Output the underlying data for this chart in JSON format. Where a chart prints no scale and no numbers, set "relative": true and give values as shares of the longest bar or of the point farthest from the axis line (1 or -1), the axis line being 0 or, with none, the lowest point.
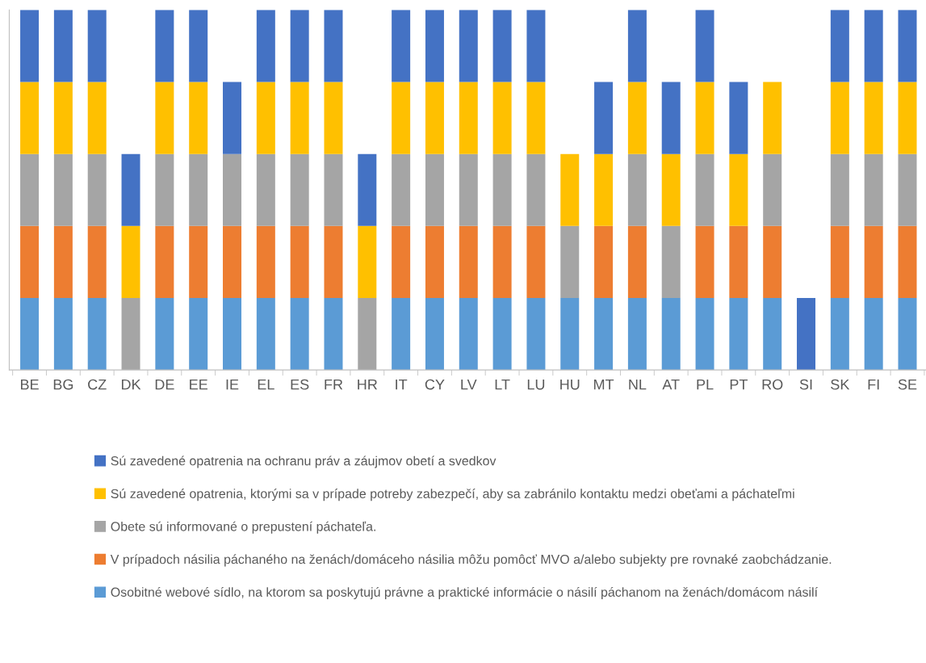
{
  "chart_data": {
    "type": "bar",
    "stacked": true,
    "relative": true,
    "legend": "bottom",
    "categories": [
      "BE",
      "BG",
      "CZ",
      "DK",
      "DE",
      "EE",
      "IE",
      "EL",
      "ES",
      "FR",
      "HR",
      "IT",
      "CY",
      "LV",
      "LT",
      "LU",
      "HU",
      "MT",
      "NL",
      "AT",
      "PL",
      "PT",
      "RO",
      "SI",
      "SK",
      "FI",
      "SE"
    ],
    "series": [
      {
        "name": "Osobitné webové sídlo, na ktorom sa poskytujú právne a praktické informácie o násilí páchanom na ženách/domácom násilí",
        "color": "#5b9bd5",
        "values": [
          0.2,
          0.2,
          0.2,
          null,
          0.2,
          0.2,
          0.2,
          0.2,
          0.2,
          0.2,
          null,
          0.2,
          0.2,
          0.2,
          0.2,
          0.2,
          0.2,
          0.2,
          0.2,
          0.2,
          0.2,
          0.2,
          0.2,
          null,
          0.2,
          0.2,
          0.2
        ]
      },
      {
        "name": "V prípadoch násilia páchaného na ženách/domáceho násilia môžu pomôcť MVO a/alebo subjekty pre rovnaké zaobchádzanie.",
        "color": "#ed7d31",
        "values": [
          0.2,
          0.2,
          0.2,
          null,
          0.2,
          0.2,
          0.2,
          0.2,
          0.2,
          0.2,
          null,
          0.2,
          0.2,
          0.2,
          0.2,
          0.2,
          null,
          0.2,
          0.2,
          null,
          0.2,
          0.2,
          0.2,
          null,
          0.2,
          0.2,
          0.2
        ]
      },
      {
        "name": "Obete sú informované o prepustení páchateľa.",
        "color": "#a5a5a5",
        "values": [
          0.2,
          0.2,
          0.2,
          0.2,
          0.2,
          0.2,
          0.2,
          0.2,
          0.2,
          0.2,
          0.2,
          0.2,
          0.2,
          0.2,
          0.2,
          0.2,
          0.2,
          null,
          0.2,
          0.2,
          0.2,
          null,
          0.2,
          null,
          0.2,
          0.2,
          0.2
        ]
      },
      {
        "name": "Sú zavedené opatrenia, ktorými sa v prípade potreby zabezpečí, aby sa zabránilo kontaktu medzi obeťami a páchateľmi",
        "color": "#ffc000",
        "values": [
          0.2,
          0.2,
          0.2,
          0.2,
          0.2,
          0.2,
          null,
          0.2,
          0.2,
          0.2,
          0.2,
          0.2,
          0.2,
          0.2,
          0.2,
          0.2,
          0.2,
          0.2,
          0.2,
          0.2,
          0.2,
          0.2,
          0.2,
          null,
          0.2,
          0.2,
          0.2
        ]
      },
      {
        "name": "Sú zavedené opatrenia na ochranu práv a záujmov obetí a svedkov",
        "color": "#4472c4",
        "values": [
          0.2,
          0.2,
          0.2,
          0.2,
          0.2,
          0.2,
          0.2,
          0.2,
          0.2,
          0.2,
          0.2,
          0.2,
          0.2,
          0.2,
          0.2,
          0.2,
          null,
          0.2,
          0.2,
          0.2,
          0.2,
          0.2,
          null,
          0.2,
          0.2,
          0.2,
          0.2
        ]
      }
    ]
  }
}
